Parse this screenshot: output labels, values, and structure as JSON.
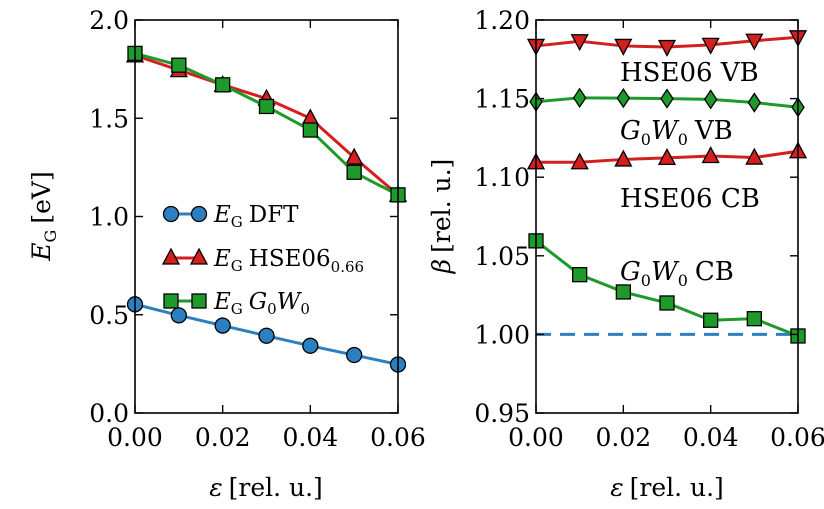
{
  "chart_data": [
    {
      "type": "line",
      "x": [
        0.0,
        0.01,
        0.02,
        0.03,
        0.04,
        0.05,
        0.06
      ],
      "xlim": [
        0.0,
        0.06
      ],
      "ylim": [
        0.0,
        2.0
      ],
      "xticks": [
        "0.00",
        "0.02",
        "0.04",
        "0.06"
      ],
      "yticks": [
        "0.0",
        "0.5",
        "1.0",
        "1.5",
        "2.0"
      ],
      "xlabel": {
        "symbol": "ε",
        "unit": "[rel. u.]"
      },
      "ylabel": {
        "symbol": "E",
        "sub": "G",
        "unit": "[eV]"
      },
      "legend_position": "center-left",
      "series": [
        {
          "name": "E_G DFT",
          "legend_text": {
            "symbol": "E",
            "sub": "G",
            "text": "DFT"
          },
          "marker": "circle",
          "color": "#2c7fc0",
          "line_color": "#2c7fc0",
          "edge_color": "#000000",
          "values": [
            0.553,
            0.497,
            0.445,
            0.393,
            0.342,
            0.295,
            0.247
          ]
        },
        {
          "name": "E_G HSE06_0.66",
          "legend_text": {
            "symbol": "E",
            "sub": "G",
            "text": "HSE06",
            "text_sub": "0.66"
          },
          "marker": "triangle-up",
          "color": "#d41f1f",
          "line_color": "#d41f1f",
          "edge_color": "#000000",
          "values": [
            1.82,
            1.745,
            1.67,
            1.6,
            1.5,
            1.3,
            1.11
          ]
        },
        {
          "name": "E_G G0W0",
          "legend_text": {
            "symbol": "E",
            "sub": "G",
            "w1": "G",
            "w1sub": "0",
            "w2": "W",
            "w2sub": "0"
          },
          "marker": "square",
          "color": "#1e9a2a",
          "line_color": "#1e9a2a",
          "edge_color": "#000000",
          "values": [
            1.83,
            1.77,
            1.67,
            1.56,
            1.44,
            1.225,
            1.11
          ]
        }
      ]
    },
    {
      "type": "line",
      "x": [
        0.0,
        0.01,
        0.02,
        0.03,
        0.04,
        0.05,
        0.06
      ],
      "xlim": [
        0.0,
        0.06
      ],
      "ylim": [
        0.95,
        1.2
      ],
      "xticks": [
        "0.00",
        "0.02",
        "0.04",
        "0.06"
      ],
      "yticks": [
        "0.95",
        "1.00",
        "1.05",
        "1.10",
        "1.15",
        "1.20"
      ],
      "xlabel": {
        "symbol": "ε",
        "unit": "[rel. u.]"
      },
      "ylabel": {
        "symbol": "β",
        "unit": "[rel. u.]"
      },
      "reference_line": {
        "y": 1.0,
        "style": "dashed",
        "color": "#2c7fc0"
      },
      "series": [
        {
          "name": "HSE06 VB",
          "label_text": "HSE06 VB",
          "marker": "triangle-down",
          "color": "#d41f1f",
          "line_color": "#d41f1f",
          "edge_color": "#000000",
          "values": [
            1.1835,
            1.1865,
            1.1835,
            1.1828,
            1.1842,
            1.1868,
            1.189
          ]
        },
        {
          "name": "G0W0 VB",
          "label_text": {
            "w1": "G",
            "w1sub": "0",
            "w2": "W",
            "w2sub": "0",
            "text": "VB"
          },
          "marker": "diamond",
          "color": "#1e9a2a",
          "line_color": "#1e9a2a",
          "edge_color": "#000000",
          "values": [
            1.148,
            1.1505,
            1.1503,
            1.15,
            1.1495,
            1.1475,
            1.1445
          ]
        },
        {
          "name": "HSE06 CB",
          "label_text": "HSE06 CB",
          "marker": "triangle-up",
          "color": "#d41f1f",
          "line_color": "#d41f1f",
          "edge_color": "#000000",
          "values": [
            1.1095,
            1.1095,
            1.1113,
            1.1123,
            1.1135,
            1.1125,
            1.1165
          ]
        },
        {
          "name": "G0W0 CB",
          "label_text": {
            "w1": "G",
            "w1sub": "0",
            "w2": "W",
            "w2sub": "0",
            "text": "CB"
          },
          "marker": "square",
          "color": "#1e9a2a",
          "line_color": "#1e9a2a",
          "edge_color": "#000000",
          "values": [
            1.0595,
            1.038,
            1.027,
            1.02,
            1.009,
            1.01,
            0.999
          ]
        }
      ]
    }
  ]
}
